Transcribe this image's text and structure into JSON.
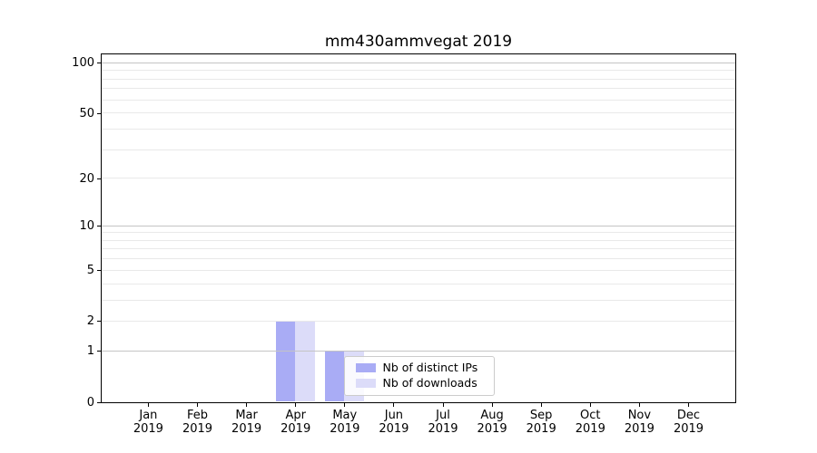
{
  "figure": {
    "background": "#ffffff"
  },
  "chart_data": {
    "type": "bar",
    "title": "mm430ammvegat 2019",
    "x": {
      "categories": [
        "Jan",
        "Feb",
        "Mar",
        "Apr",
        "May",
        "Jun",
        "Jul",
        "Aug",
        "Sep",
        "Oct",
        "Nov",
        "Dec"
      ],
      "year_label": "2019"
    },
    "series": [
      {
        "name": "Nb of distinct IPs",
        "color": "#a9acf5",
        "values": [
          0,
          0,
          0,
          2,
          1,
          0,
          0,
          0,
          0,
          0,
          0,
          0
        ]
      },
      {
        "name": "Nb of downloads",
        "color": "#dcdcf9",
        "values": [
          0,
          0,
          0,
          2,
          1,
          0,
          0,
          0,
          0,
          0,
          0,
          0
        ]
      }
    ],
    "yscale": "log1p",
    "ylim": [
      0,
      113
    ],
    "yticks": [
      0,
      1,
      2,
      5,
      10,
      20,
      50,
      100
    ],
    "major_gridlines": [
      1,
      10,
      100
    ],
    "minor_gridlines": [
      2,
      3,
      4,
      5,
      6,
      7,
      8,
      9,
      20,
      30,
      40,
      50,
      60,
      70,
      80,
      90
    ],
    "grid": true,
    "legend": {
      "position": "inside-lower-center"
    },
    "colors": {
      "major_grid": "#c4c4c4",
      "minor_grid": "#e9e9e9",
      "spine": "#000000",
      "text": "#000000"
    }
  }
}
